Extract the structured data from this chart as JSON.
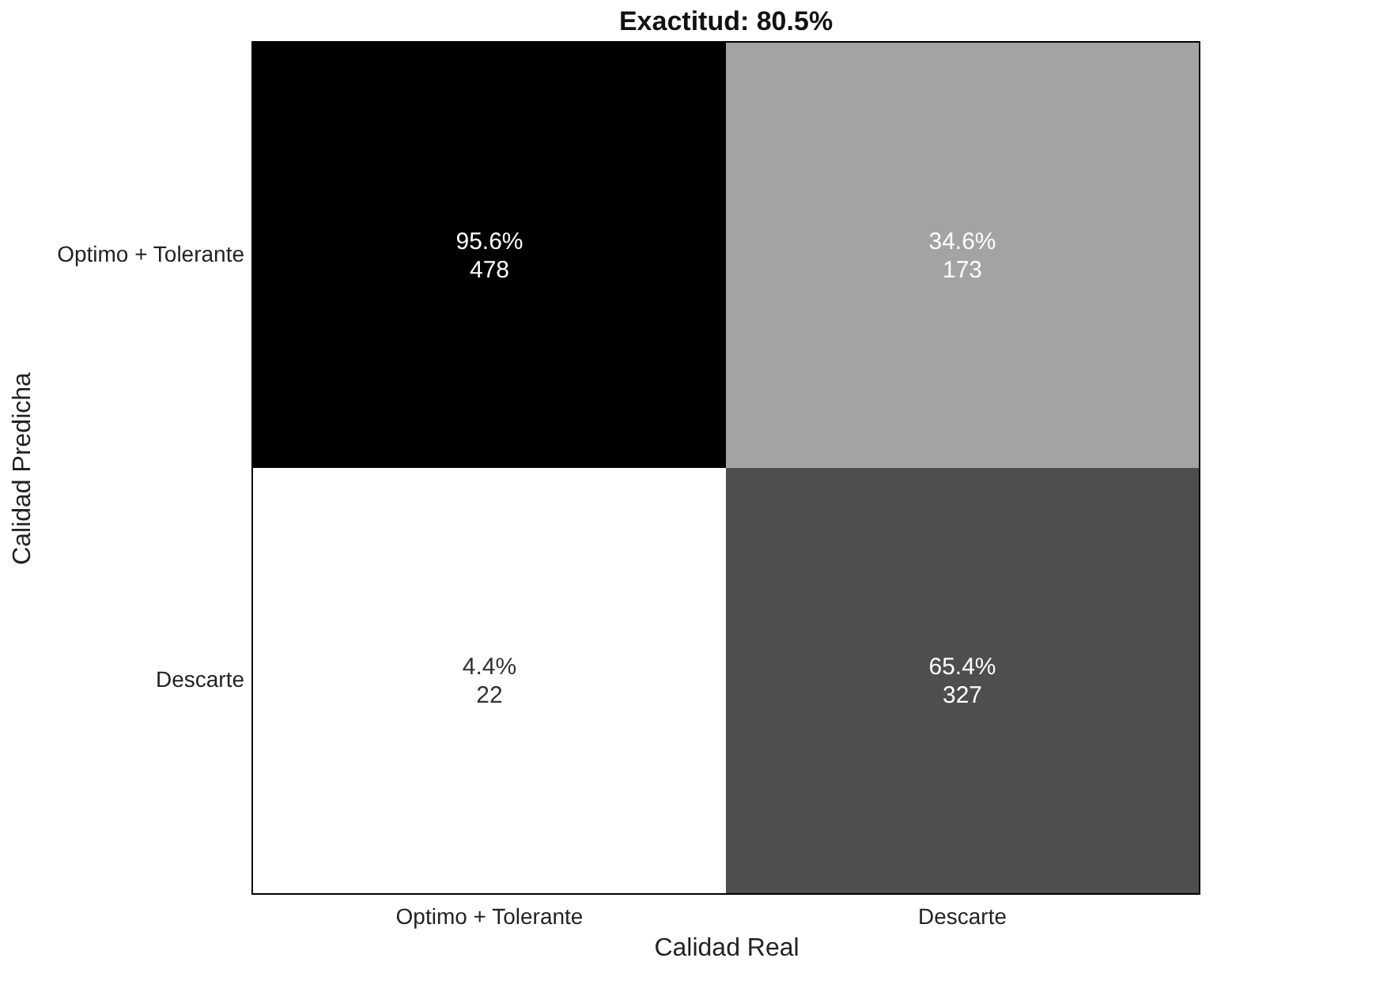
{
  "chart_data": {
    "type": "heatmap",
    "title": "Exactitud: 80.5%",
    "xlabel": "Calidad Real",
    "ylabel": "Calidad Predicha",
    "categories": [
      "Optimo + Tolerante",
      "Descarte"
    ],
    "y_categories": [
      "Optimo + Tolerante",
      "Descarte"
    ],
    "cells": [
      [
        95.6,
        34.6
      ],
      [
        4.4,
        65.4
      ]
    ],
    "cell_labels": [
      [
        "95.6%",
        "34.6%"
      ],
      [
        "4.4%",
        "65.4%"
      ]
    ],
    "annotations": [
      "478",
      "173",
      "22",
      "327"
    ]
  }
}
